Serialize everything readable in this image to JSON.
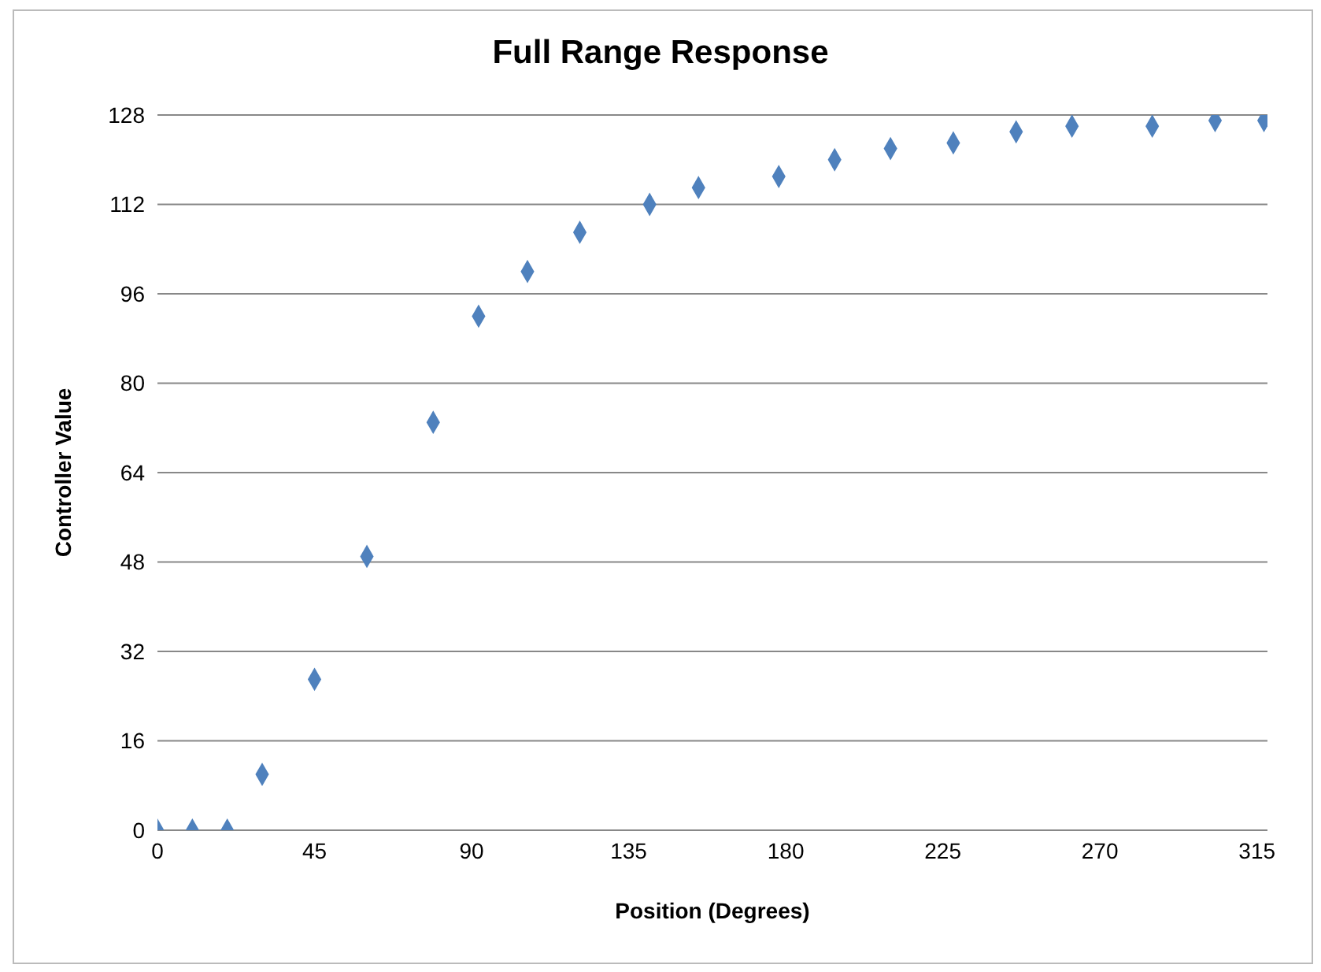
{
  "chart_data": {
    "type": "scatter",
    "title": "Full Range Response",
    "xlabel": "Position (Degrees)",
    "ylabel": "Controller Value",
    "x": [
      0,
      10,
      20,
      30,
      45,
      60,
      79,
      92,
      106,
      121,
      141,
      155,
      178,
      194,
      210,
      228,
      246,
      262,
      285,
      303,
      317
    ],
    "series": [
      {
        "color": "#4f81bd",
        "values": [
          0,
          0,
          0,
          10,
          27,
          49,
          73,
          92,
          100,
          107,
          112,
          115,
          117,
          120,
          122,
          123,
          125,
          126,
          126,
          127,
          127
        ]
      }
    ],
    "xlim": [
      0,
      318
    ],
    "xticks": [
      0,
      45,
      90,
      135,
      180,
      225,
      270,
      315
    ],
    "ylim": [
      0,
      128
    ],
    "yticks": [
      0,
      16,
      32,
      48,
      64,
      80,
      96,
      112,
      128
    ],
    "grid": "y",
    "marker": "diamond",
    "legend": false
  }
}
